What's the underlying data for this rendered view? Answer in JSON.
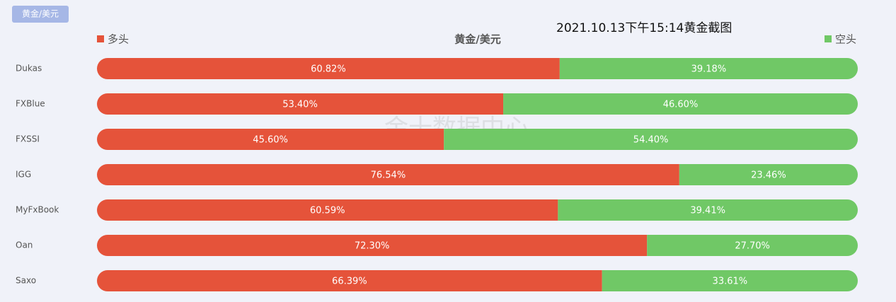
{
  "chart_data": {
    "type": "bar",
    "orientation": "horizontal",
    "stacked": true,
    "tab": "黄金/美元",
    "title": "黄金/美元",
    "annotation": "2021.10.13下午15:14黄金截图",
    "watermark": "金十数据中心",
    "categories": [
      "Dukas",
      "FXBlue",
      "FXSSI",
      "IGG",
      "MyFxBook",
      "Oan",
      "Saxo"
    ],
    "series": [
      {
        "name": "多头",
        "color": "#e5533a",
        "values": [
          60.82,
          53.4,
          45.6,
          76.54,
          60.59,
          72.3,
          66.39
        ],
        "value_labels": [
          "60.82%",
          "53.40%",
          "45.60%",
          "76.54%",
          "60.59%",
          "72.30%",
          "66.39%"
        ]
      },
      {
        "name": "空头",
        "color": "#70c866",
        "values": [
          39.18,
          46.6,
          54.4,
          23.46,
          39.41,
          27.7,
          33.61
        ],
        "value_labels": [
          "39.18%",
          "46.60%",
          "54.40%",
          "23.46%",
          "39.41%",
          "27.70%",
          "33.61%"
        ]
      }
    ],
    "xlim": [
      0,
      100
    ]
  }
}
